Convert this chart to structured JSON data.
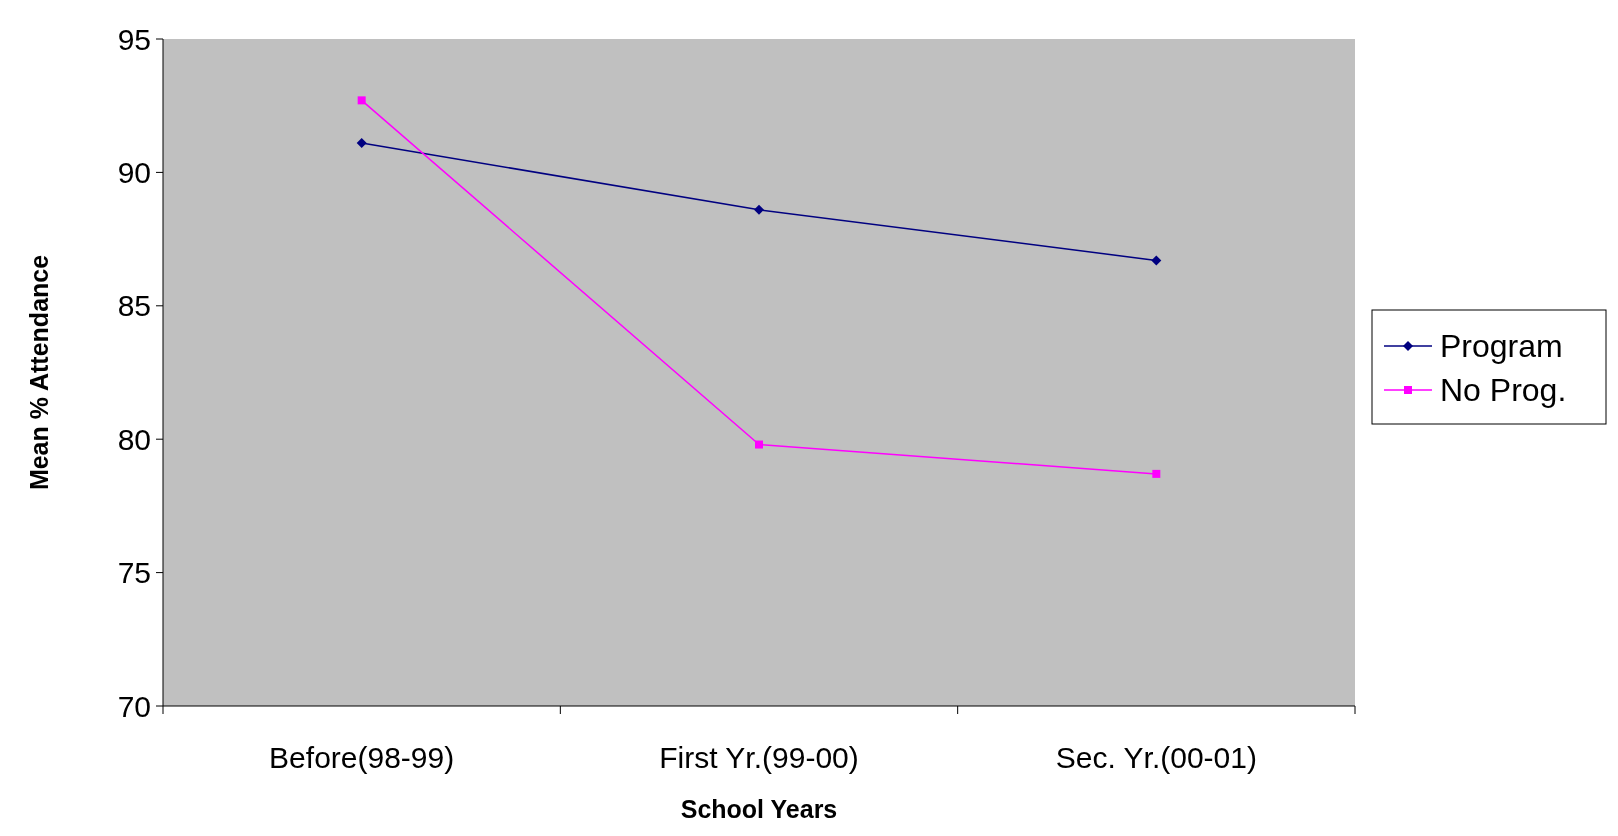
{
  "chart_data": {
    "type": "line",
    "xlabel": "School Years",
    "ylabel": "Mean % Attendance",
    "categories": [
      "Before(98-99)",
      "First Yr.(99-00)",
      "Sec. Yr.(00-01)"
    ],
    "series": [
      {
        "name": "Program",
        "color": "#000080",
        "marker": "diamond",
        "values": [
          91.1,
          88.6,
          86.7
        ]
      },
      {
        "name": "No Prog.",
        "color": "#ff00ff",
        "marker": "square",
        "values": [
          92.7,
          79.8,
          78.7
        ]
      }
    ],
    "ylim": [
      70,
      95
    ],
    "yticks": [
      70,
      75,
      80,
      85,
      90,
      95
    ],
    "grid": false,
    "legend": "right"
  }
}
